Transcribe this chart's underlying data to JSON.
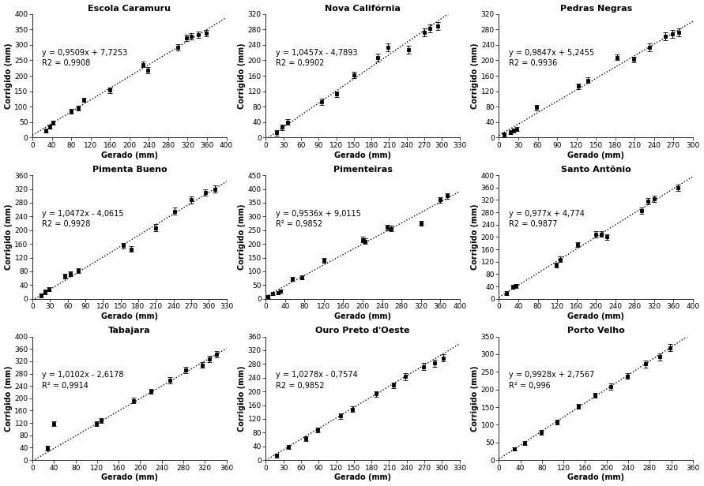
{
  "subplots": [
    {
      "title": "Escola Caramuru",
      "equation": "y = 0,9509x + 7,7253",
      "r2": "R2 = 0,9908",
      "slope": 0.9509,
      "intercept": 7.7253,
      "xlim": [
        0,
        400
      ],
      "ylim": [
        0,
        400
      ],
      "xticks": [
        0,
        40,
        80,
        120,
        160,
        200,
        240,
        280,
        320,
        360,
        400
      ],
      "yticks": [
        0,
        50,
        100,
        150,
        200,
        250,
        300,
        350,
        400
      ],
      "x": [
        28,
        35,
        42,
        80,
        95,
        105,
        160,
        228,
        238,
        300,
        318,
        328,
        342,
        358
      ],
      "y": [
        22,
        35,
        48,
        85,
        95,
        122,
        153,
        237,
        218,
        293,
        322,
        328,
        332,
        338
      ],
      "yerr": [
        6,
        6,
        6,
        7,
        7,
        7,
        8,
        10,
        10,
        10,
        10,
        10,
        10,
        10
      ]
    },
    {
      "title": "Nova Califórnia",
      "equation": "y = 1,0457x - 4,7893",
      "r2": "R2 = 0,9902",
      "slope": 1.0457,
      "intercept": -4.7893,
      "xlim": [
        0,
        330
      ],
      "ylim": [
        0,
        320
      ],
      "xticks": [
        0,
        30,
        60,
        90,
        120,
        150,
        180,
        210,
        240,
        270,
        300,
        330
      ],
      "yticks": [
        0,
        40,
        80,
        120,
        160,
        200,
        240,
        280,
        320
      ],
      "x": [
        18,
        28,
        37,
        95,
        120,
        150,
        190,
        208,
        243,
        270,
        280,
        293
      ],
      "y": [
        12,
        27,
        40,
        92,
        112,
        162,
        207,
        233,
        228,
        272,
        283,
        288
      ],
      "yerr": [
        7,
        7,
        7,
        8,
        8,
        8,
        10,
        10,
        10,
        10,
        10,
        10
      ]
    },
    {
      "title": "Pedras Negras",
      "equation": "y = 0,9847x + 5,2455",
      "r2": "R2 = 0,9936",
      "slope": 0.9847,
      "intercept": 5.2455,
      "xlim": [
        0,
        300
      ],
      "ylim": [
        0,
        320
      ],
      "xticks": [
        0,
        30,
        60,
        90,
        120,
        150,
        180,
        210,
        240,
        270,
        300
      ],
      "yticks": [
        0,
        40,
        80,
        120,
        160,
        200,
        240,
        280,
        320
      ],
      "x": [
        8,
        18,
        23,
        28,
        58,
        123,
        138,
        183,
        208,
        233,
        258,
        268,
        278
      ],
      "y": [
        8,
        13,
        18,
        22,
        78,
        133,
        148,
        208,
        202,
        233,
        263,
        268,
        273
      ],
      "yerr": [
        5,
        5,
        5,
        5,
        7,
        7,
        7,
        8,
        8,
        10,
        10,
        10,
        10
      ]
    },
    {
      "title": "Pimenta Bueno",
      "equation": "y = 1,0472x - 4,0615",
      "r2": "R2 = 0,9928",
      "slope": 1.0472,
      "intercept": -4.0615,
      "xlim": [
        0,
        330
      ],
      "ylim": [
        0,
        360
      ],
      "xticks": [
        0,
        30,
        60,
        90,
        120,
        150,
        180,
        210,
        240,
        270,
        300,
        330
      ],
      "yticks": [
        0,
        40,
        80,
        120,
        160,
        200,
        240,
        280,
        320,
        360
      ],
      "x": [
        15,
        22,
        28,
        55,
        65,
        78,
        155,
        168,
        210,
        242,
        270,
        295,
        310
      ],
      "y": [
        10,
        20,
        28,
        65,
        72,
        82,
        155,
        145,
        207,
        255,
        288,
        310,
        320
      ],
      "yerr": [
        6,
        6,
        6,
        7,
        7,
        7,
        8,
        8,
        10,
        10,
        10,
        10,
        10
      ]
    },
    {
      "title": "Pimenteiras",
      "equation": "y = 0,9536x + 9,0115",
      "r2": "R² = 0,9852",
      "slope": 0.9536,
      "intercept": 9.0115,
      "xlim": [
        0,
        400
      ],
      "ylim": [
        0,
        450
      ],
      "xticks": [
        0,
        40,
        80,
        120,
        160,
        200,
        240,
        280,
        320,
        360,
        400
      ],
      "yticks": [
        0,
        50,
        100,
        150,
        200,
        250,
        300,
        350,
        400,
        450
      ],
      "x": [
        5,
        15,
        25,
        30,
        55,
        75,
        120,
        200,
        205,
        250,
        258,
        320,
        360,
        375
      ],
      "y": [
        8,
        18,
        22,
        28,
        72,
        78,
        140,
        215,
        210,
        260,
        255,
        275,
        360,
        375
      ],
      "yerr": [
        5,
        5,
        5,
        5,
        7,
        7,
        8,
        10,
        10,
        10,
        10,
        10,
        10,
        10
      ]
    },
    {
      "title": "Santo Antônio",
      "equation": "y = 0,977x + 4,774",
      "r2": "R2 = 0,9877",
      "slope": 0.977,
      "intercept": 4.774,
      "xlim": [
        0,
        400
      ],
      "ylim": [
        0,
        400
      ],
      "xticks": [
        0,
        40,
        80,
        120,
        160,
        200,
        240,
        280,
        320,
        360,
        400
      ],
      "yticks": [
        0,
        40,
        80,
        120,
        160,
        200,
        240,
        280,
        320,
        360,
        400
      ],
      "x": [
        15,
        28,
        35,
        118,
        127,
        162,
        200,
        212,
        222,
        295,
        308,
        320,
        370
      ],
      "y": [
        18,
        38,
        42,
        110,
        128,
        175,
        208,
        210,
        200,
        285,
        315,
        323,
        360
      ],
      "yerr": [
        6,
        6,
        6,
        8,
        8,
        8,
        10,
        10,
        10,
        10,
        10,
        10,
        10
      ]
    },
    {
      "title": "Tabajara",
      "equation": "y = 1,0102x - 2,6178",
      "r2": "R² = 0,9914",
      "slope": 1.0102,
      "intercept": -2.6178,
      "xlim": [
        0,
        360
      ],
      "ylim": [
        0,
        400
      ],
      "xticks": [
        0,
        40,
        80,
        120,
        160,
        200,
        240,
        280,
        320,
        360
      ],
      "yticks": [
        0,
        40,
        80,
        120,
        160,
        200,
        240,
        280,
        320,
        360,
        400
      ],
      "x": [
        28,
        40,
        118,
        128,
        188,
        220,
        255,
        285,
        315,
        328,
        342
      ],
      "y": [
        38,
        118,
        118,
        128,
        193,
        222,
        258,
        292,
        308,
        328,
        342
      ],
      "yerr": [
        7,
        7,
        7,
        7,
        8,
        8,
        10,
        10,
        10,
        10,
        10
      ]
    },
    {
      "title": "Ouro Preto d'Oeste",
      "equation": "y = 1,0278x - 0,7574",
      "r2": "R2 = 0,9852",
      "slope": 1.0278,
      "intercept": -0.7574,
      "xlim": [
        0,
        330
      ],
      "ylim": [
        0,
        360
      ],
      "xticks": [
        0,
        30,
        60,
        90,
        120,
        150,
        180,
        210,
        240,
        270,
        300,
        330
      ],
      "yticks": [
        0,
        40,
        80,
        120,
        160,
        200,
        240,
        280,
        320,
        360
      ],
      "x": [
        18,
        38,
        68,
        88,
        128,
        148,
        188,
        218,
        238,
        268,
        288,
        302
      ],
      "y": [
        13,
        38,
        62,
        88,
        128,
        148,
        193,
        218,
        243,
        272,
        282,
        298
      ],
      "yerr": [
        6,
        6,
        7,
        7,
        8,
        8,
        8,
        8,
        10,
        10,
        10,
        10
      ]
    },
    {
      "title": "Porto Velho",
      "equation": "y = 0,9928x + 2,7567",
      "r2": "R² = 0,996",
      "slope": 0.9928,
      "intercept": 2.7567,
      "xlim": [
        0,
        360
      ],
      "ylim": [
        0,
        350
      ],
      "xticks": [
        0,
        40,
        80,
        120,
        160,
        200,
        240,
        280,
        320,
        360
      ],
      "yticks": [
        0,
        50,
        100,
        150,
        200,
        250,
        300,
        350
      ],
      "x": [
        28,
        48,
        78,
        108,
        148,
        178,
        208,
        238,
        272,
        298,
        318
      ],
      "y": [
        32,
        48,
        78,
        108,
        153,
        183,
        208,
        238,
        272,
        292,
        318
      ],
      "yerr": [
        5,
        5,
        7,
        7,
        7,
        7,
        8,
        8,
        10,
        10,
        10
      ]
    }
  ],
  "xlabel": "Gerado (mm)",
  "ylabel": "Corrigido (mm)",
  "marker": "s",
  "markersize": 3.5,
  "linewidth": 1.0,
  "linestyle": "dotted",
  "color": "black",
  "bg_color": "white",
  "title_fontsize": 8,
  "label_fontsize": 7,
  "tick_fontsize": 6.5,
  "eq_fontsize": 7
}
